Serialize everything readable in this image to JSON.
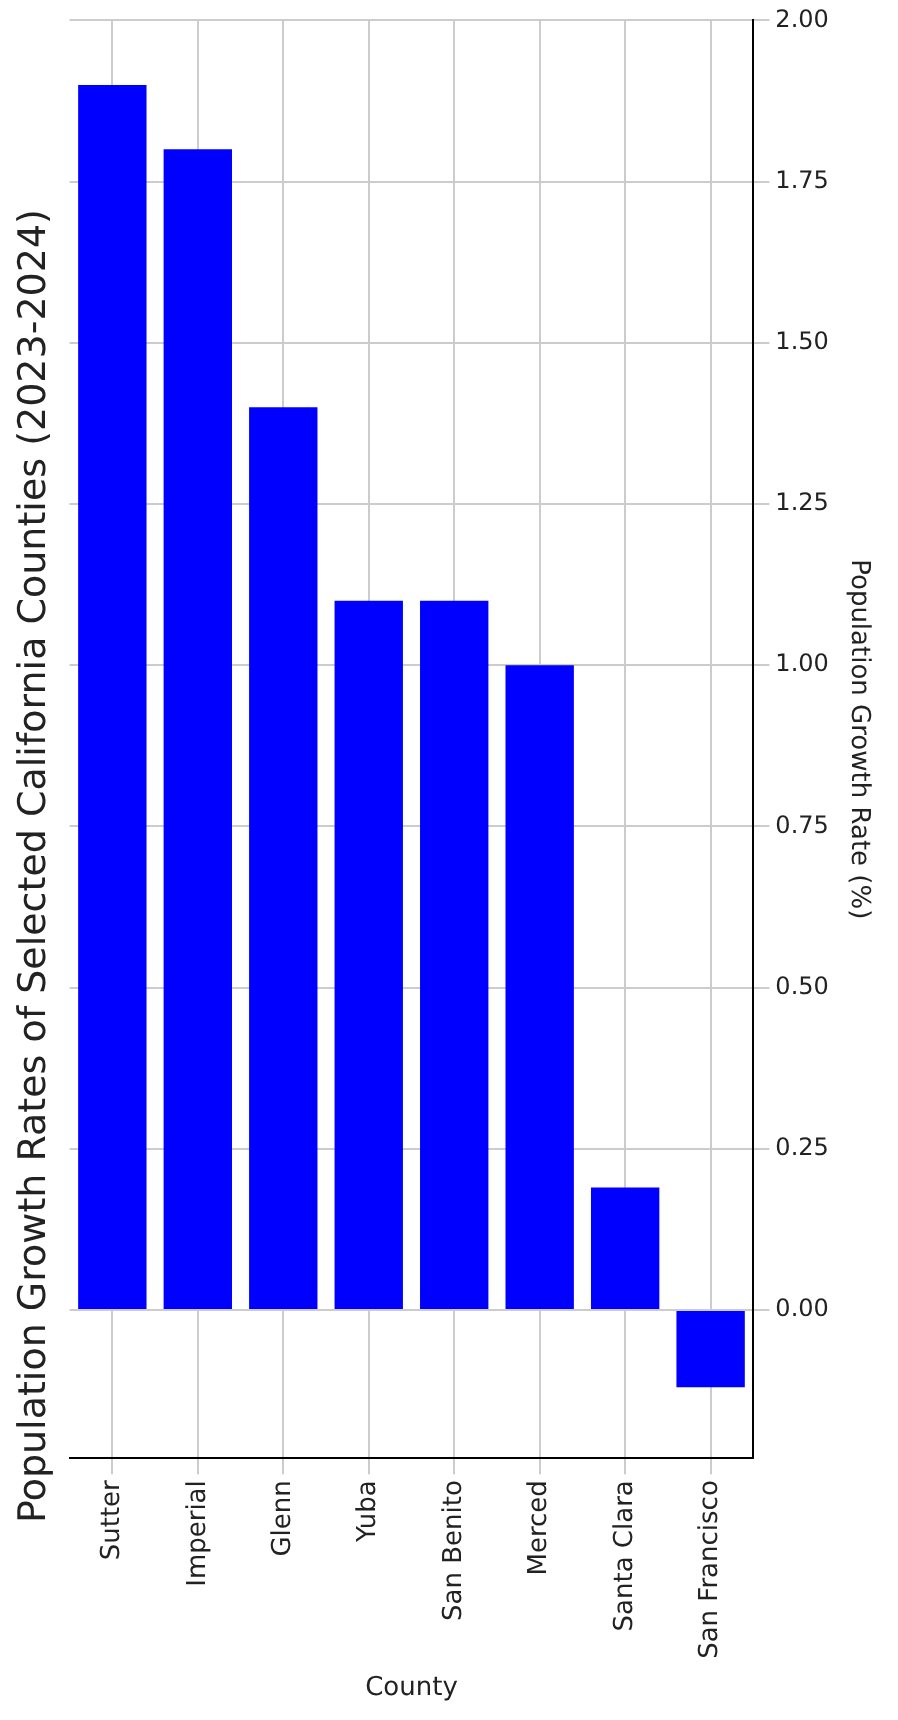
{
  "chart_data": {
    "type": "bar",
    "title": "Population Growth Rates of Selected California Counties (2023-2024)",
    "xlabel": "County",
    "ylabel": "Population Growth Rate (%)",
    "categories": [
      "Sutter",
      "Imperial",
      "Glenn",
      "Yuba",
      "San Benito",
      "Merced",
      "Santa Clara",
      "San Francisco"
    ],
    "values": [
      1.9,
      1.8,
      1.4,
      1.1,
      1.1,
      1.0,
      0.19,
      -0.12
    ],
    "color": "#0000ff",
    "ylim": [
      -0.23,
      2.0
    ],
    "yticks": [
      {
        "value": 0,
        "label": "0.00"
      },
      {
        "value": 0.25,
        "label": "0.25"
      },
      {
        "value": 0.5,
        "label": "0.50"
      },
      {
        "value": 0.75,
        "label": "0.75"
      },
      {
        "value": 1,
        "label": "1.00"
      },
      {
        "value": 1.25,
        "label": "1.25"
      },
      {
        "value": 1.5,
        "label": "1.50"
      },
      {
        "value": 1.75,
        "label": "1.75"
      },
      {
        "value": 2,
        "label": "2.00"
      }
    ],
    "grid": true
  }
}
